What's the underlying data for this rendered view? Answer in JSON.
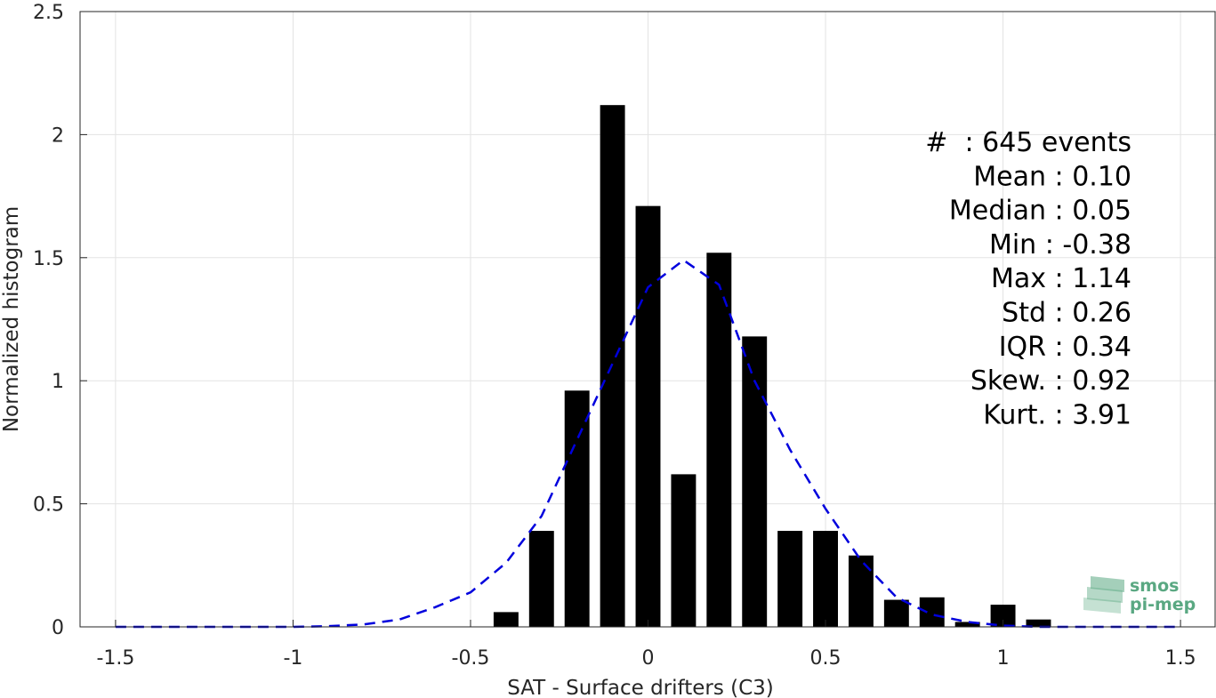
{
  "chart_data": {
    "type": "bar",
    "xlabel": "SAT - Surface drifters (C3)",
    "ylabel": "Normalized histogram",
    "xlim": [
      -1.6,
      1.6
    ],
    "ylim": [
      0,
      2.5
    ],
    "x_ticks": [
      -1.5,
      -1,
      -0.5,
      0,
      0.5,
      1,
      1.5
    ],
    "x_tick_labels": [
      "-1.5",
      "-1",
      "-0.5",
      "0",
      "0.5",
      "1",
      "1.5"
    ],
    "y_ticks": [
      0,
      0.5,
      1,
      1.5,
      2,
      2.5
    ],
    "y_tick_labels": [
      "0",
      "0.5",
      "1",
      "1.5",
      "2",
      "2.5"
    ],
    "grid": true,
    "bar_width": 0.07,
    "bars": {
      "x": [
        -0.4,
        -0.3,
        -0.2,
        -0.1,
        0.0,
        0.1,
        0.2,
        0.3,
        0.4,
        0.5,
        0.6,
        0.7,
        0.8,
        0.9,
        1.0,
        1.1
      ],
      "values": [
        0.06,
        0.39,
        0.96,
        2.12,
        1.71,
        0.62,
        1.52,
        1.18,
        0.39,
        0.39,
        0.29,
        0.11,
        0.12,
        0.02,
        0.09,
        0.03
      ],
      "color": "#000000"
    },
    "fit_curve": {
      "style": "dashed",
      "color": "#0000dd",
      "x": [
        -1.5,
        -1.4,
        -1.3,
        -1.2,
        -1.1,
        -1.0,
        -0.9,
        -0.8,
        -0.7,
        -0.6,
        -0.5,
        -0.4,
        -0.3,
        -0.2,
        -0.1,
        0.0,
        0.1,
        0.2,
        0.3,
        0.4,
        0.5,
        0.6,
        0.7,
        0.8,
        0.9,
        1.0,
        1.1,
        1.2,
        1.3,
        1.4,
        1.5
      ],
      "y": [
        0.0,
        0.0,
        0.0,
        0.0,
        0.0,
        0.0,
        0.003,
        0.01,
        0.03,
        0.08,
        0.14,
        0.26,
        0.45,
        0.76,
        1.07,
        1.38,
        1.49,
        1.39,
        1.0,
        0.72,
        0.48,
        0.27,
        0.12,
        0.05,
        0.02,
        0.005,
        0.0,
        0.0,
        0.0,
        0.0,
        0.0
      ]
    },
    "stats": [
      "#  : 645 events",
      "Mean : 0.10",
      "Median : 0.05",
      "Min : -0.38",
      "Max : 1.14",
      "Std : 0.26",
      "IQR : 0.34",
      "Skew. : 0.92",
      "Kurt. : 3.91"
    ]
  },
  "logo": {
    "line1": "smos",
    "line2": "pi-mep",
    "color": "#5aa882"
  }
}
